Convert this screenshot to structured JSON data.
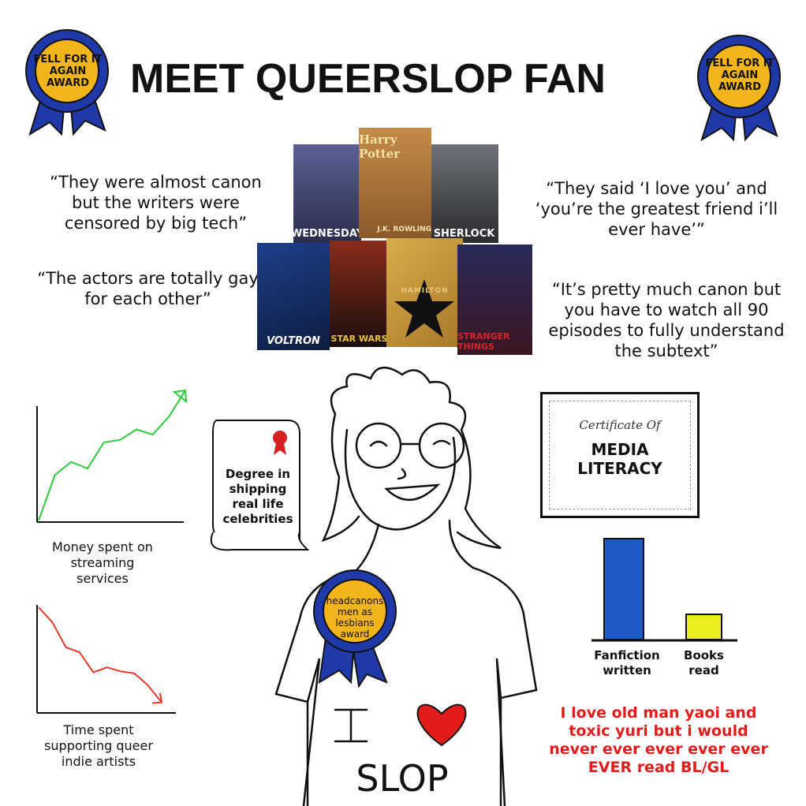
{
  "title": "MEET QUEERSLOP FAN",
  "awards": {
    "left": "FELL FOR IT AGAIN AWARD",
    "right": "FELL FOR IT AGAIN AWARD",
    "badge": "headcanons men as lesbians award",
    "ribbon_color": "#1f3aa8",
    "badge_color": "#f2b51c"
  },
  "quotes": [
    "“They were almost canon but the writers were censored by big tech”",
    "“The actors are totally gay for each other”",
    "“They said ‘I love you’ and ‘you’re the greatest friend i’ll ever have’”",
    "“It’s pretty much canon but you have to watch all 90 episodes to fully understand the subtext”"
  ],
  "posters": [
    {
      "title": "WEDNESDAY",
      "color": "#3a3f6e"
    },
    {
      "title": "Harry Potter",
      "subtitle": "J.K. ROWLING",
      "color": "#b07a3c"
    },
    {
      "title": "SHERLOCK",
      "color": "#4a4d52"
    },
    {
      "title": "VOLTRON",
      "color": "#1d3f8a"
    },
    {
      "title": "STAR WARS",
      "color": "#5a2418"
    },
    {
      "title": "HAMILTON",
      "color": "#c99a3a"
    },
    {
      "title": "STRANGER THINGS",
      "color": "#2a2140"
    }
  ],
  "scroll": {
    "text": "Degree in shipping real life celebrities"
  },
  "certificate": {
    "heading": "Certificate Of",
    "title": "MEDIA LITERACY"
  },
  "shirt": {
    "letter": "I",
    "word": "SLOP",
    "heart_color": "#e21b1b"
  },
  "chart_data": [
    {
      "type": "line",
      "label": "Money spent on streaming services",
      "trend": "up",
      "color": "#2ecc3a",
      "values": [
        0,
        35,
        45,
        40,
        60,
        62,
        70,
        66,
        80,
        100
      ]
    },
    {
      "type": "line",
      "label": "Time spent supporting queer indie artists",
      "trend": "down",
      "color": "#e23b2a",
      "values": [
        100,
        85,
        60,
        55,
        35,
        40,
        36,
        34,
        22,
        5
      ]
    },
    {
      "type": "bar",
      "categories": [
        "Fanfiction written",
        "Books read"
      ],
      "values": [
        100,
        25
      ],
      "colors": [
        "#1e5bc6",
        "#e8ef1a"
      ]
    }
  ],
  "red_text": "I love old man yaoi and toxic yuri but i would never ever ever ever ever EVER read BL/GL"
}
